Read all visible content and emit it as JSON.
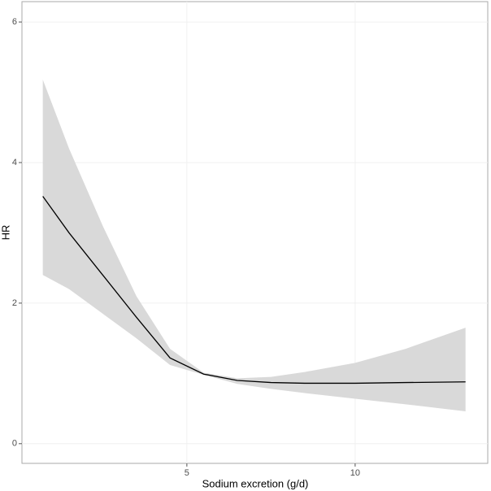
{
  "chart_data": {
    "type": "line",
    "x_label": "Sodium excretion (g/d)",
    "y_label": "HR",
    "x": [
      0.72,
      1.5,
      2.5,
      3.5,
      4.5,
      5.5,
      6.5,
      7.5,
      8.5,
      10,
      11.5,
      13.28
    ],
    "values": [
      3.52,
      3.0,
      2.4,
      1.8,
      1.22,
      0.99,
      0.9,
      0.87,
      0.86,
      0.86,
      0.87,
      0.88
    ],
    "upper": [
      5.18,
      4.2,
      3.1,
      2.1,
      1.35,
      1.01,
      0.93,
      0.95,
      1.02,
      1.15,
      1.35,
      1.65
    ],
    "lower": [
      2.4,
      2.2,
      1.85,
      1.5,
      1.12,
      0.98,
      0.85,
      0.78,
      0.72,
      0.64,
      0.56,
      0.46
    ],
    "color": "#000000",
    "band_color": "#d9d9d9",
    "xlim": [
      0.1,
      13.94
    ],
    "ylim": [
      -0.28,
      6.29
    ],
    "xticks": [
      5,
      10
    ],
    "yticks": [
      0,
      2,
      4,
      6
    ],
    "grid": true
  }
}
